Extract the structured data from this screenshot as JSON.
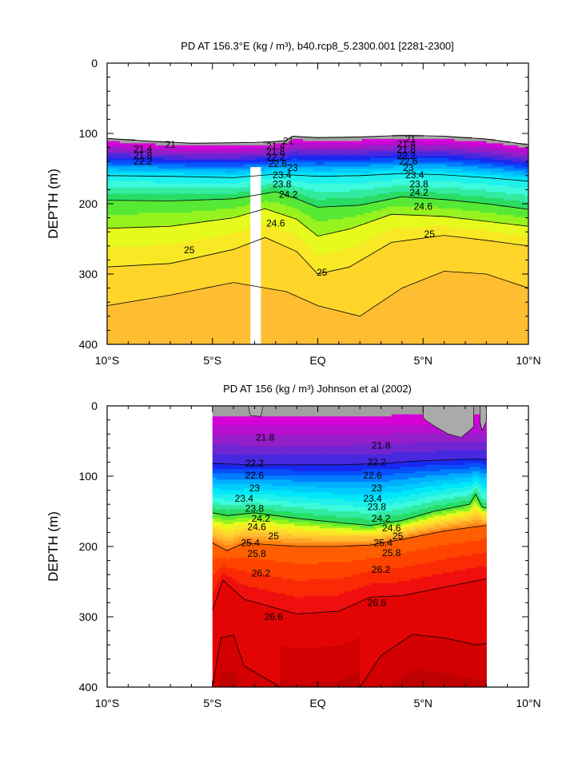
{
  "chart_data": [
    {
      "type": "contour",
      "title": "PD AT 156.3°E (kg / m³), b40.rcp8_5.2300.001 [2281-2300]",
      "ylabel": "DEPTH (m)",
      "xlabel": "",
      "x_range_lat": [
        -10,
        10
      ],
      "y_range_depth": [
        0,
        400
      ],
      "x_ticks": [
        {
          "v": -10,
          "label": "10°S"
        },
        {
          "v": -5,
          "label": "5°S"
        },
        {
          "v": 0,
          "label": "EQ"
        },
        {
          "v": 5,
          "label": "5°N"
        },
        {
          "v": 10,
          "label": "10°N"
        }
      ],
      "y_ticks": [
        {
          "v": 0,
          "label": "0"
        },
        {
          "v": 100,
          "label": "100"
        },
        {
          "v": 200,
          "label": "200"
        },
        {
          "v": 300,
          "label": "300"
        },
        {
          "v": 400,
          "label": "400"
        }
      ],
      "levels": [
        21.0,
        21.2,
        21.4,
        21.6,
        21.8,
        22.0,
        22.2,
        22.4,
        22.6,
        22.8,
        23.0,
        23.2,
        23.4,
        23.6,
        23.8,
        24.0,
        24.2,
        24.4,
        24.6,
        24.8,
        25.0,
        25.2
      ],
      "missing_band_lat": [
        -3.2,
        -2.7
      ],
      "surface_layer": [
        {
          "lat": -10,
          "d": 107
        },
        {
          "lat": -8,
          "d": 111
        },
        {
          "lat": -6,
          "d": 114
        },
        {
          "lat": -3,
          "d": 113
        },
        {
          "lat": -2.2,
          "d": 112
        },
        {
          "lat": -1.5,
          "d": 110
        },
        {
          "lat": -1.2,
          "d": 104
        },
        {
          "lat": 0,
          "d": 106
        },
        {
          "lat": 2,
          "d": 105
        },
        {
          "lat": 4,
          "d": 103
        },
        {
          "lat": 6,
          "d": 104
        },
        {
          "lat": 8,
          "d": 108
        },
        {
          "lat": 10,
          "d": 116
        }
      ],
      "isopycnals": [
        {
          "sigma": 23.4,
          "points": [
            {
              "lat": -10,
              "d": 160
            },
            {
              "lat": -7,
              "d": 161
            },
            {
              "lat": -4,
              "d": 163
            },
            {
              "lat": -2,
              "d": 158
            },
            {
              "lat": 0,
              "d": 161
            },
            {
              "lat": 2,
              "d": 160
            },
            {
              "lat": 4,
              "d": 157
            },
            {
              "lat": 6,
              "d": 159
            },
            {
              "lat": 8,
              "d": 163
            },
            {
              "lat": 10,
              "d": 168
            }
          ]
        },
        {
          "sigma": 24.2,
          "points": [
            {
              "lat": -10,
              "d": 195
            },
            {
              "lat": -7,
              "d": 196
            },
            {
              "lat": -4,
              "d": 193
            },
            {
              "lat": -2,
              "d": 183
            },
            {
              "lat": -1,
              "d": 193
            },
            {
              "lat": 0,
              "d": 205
            },
            {
              "lat": 2,
              "d": 202
            },
            {
              "lat": 4,
              "d": 190
            },
            {
              "lat": 6,
              "d": 194
            },
            {
              "lat": 8,
              "d": 200
            },
            {
              "lat": 10,
              "d": 208
            }
          ]
        },
        {
          "sigma": 24.6,
          "points": [
            {
              "lat": -10,
              "d": 235
            },
            {
              "lat": -7,
              "d": 232
            },
            {
              "lat": -4,
              "d": 220
            },
            {
              "lat": -2.5,
              "d": 207
            },
            {
              "lat": -1,
              "d": 222
            },
            {
              "lat": 0,
              "d": 246
            },
            {
              "lat": 1.5,
              "d": 236
            },
            {
              "lat": 3.5,
              "d": 215
            },
            {
              "lat": 6,
              "d": 218
            },
            {
              "lat": 8,
              "d": 225
            },
            {
              "lat": 10,
              "d": 232
            }
          ]
        },
        {
          "sigma": 25.0,
          "points": [
            {
              "lat": -10,
              "d": 290
            },
            {
              "lat": -7,
              "d": 285
            },
            {
              "lat": -4,
              "d": 265
            },
            {
              "lat": -2.5,
              "d": 248
            },
            {
              "lat": -1,
              "d": 268
            },
            {
              "lat": 0,
              "d": 300
            },
            {
              "lat": 1.5,
              "d": 290
            },
            {
              "lat": 3.5,
              "d": 255
            },
            {
              "lat": 6,
              "d": 245
            },
            {
              "lat": 8,
              "d": 252
            },
            {
              "lat": 10,
              "d": 260
            }
          ]
        },
        {
          "sigma": 25.2,
          "points": [
            {
              "lat": -10,
              "d": 345
            },
            {
              "lat": -7,
              "d": 330
            },
            {
              "lat": -4,
              "d": 312
            },
            {
              "lat": -1.5,
              "d": 325
            },
            {
              "lat": 0,
              "d": 345
            },
            {
              "lat": 2,
              "d": 360
            },
            {
              "lat": 4,
              "d": 320
            },
            {
              "lat": 6,
              "d": 296
            },
            {
              "lat": 8,
              "d": 300
            },
            {
              "lat": 10,
              "d": 320
            }
          ]
        }
      ],
      "contour_labels": [
        {
          "text": "21",
          "lat": -7.0,
          "d": 116
        },
        {
          "text": "21.4",
          "lat": -8.3,
          "d": 122
        },
        {
          "text": "21.8",
          "lat": -8.3,
          "d": 131
        },
        {
          "text": "22.2",
          "lat": -8.3,
          "d": 140
        },
        {
          "text": "21",
          "lat": -1.4,
          "d": 111
        },
        {
          "text": "21.4",
          "lat": -2.0,
          "d": 118
        },
        {
          "text": "21.8",
          "lat": -2.0,
          "d": 126
        },
        {
          "text": "22.2",
          "lat": -2.0,
          "d": 134
        },
        {
          "text": "22.6",
          "lat": -1.9,
          "d": 143
        },
        {
          "text": "23",
          "lat": -1.2,
          "d": 149
        },
        {
          "text": "23.4",
          "lat": -1.7,
          "d": 159
        },
        {
          "text": "23.8",
          "lat": -1.7,
          "d": 172
        },
        {
          "text": "24.2",
          "lat": -1.4,
          "d": 187
        },
        {
          "text": "24.6",
          "lat": -2.0,
          "d": 228
        },
        {
          "text": "25",
          "lat": -6.1,
          "d": 266
        },
        {
          "text": "25",
          "lat": 0.2,
          "d": 298
        },
        {
          "text": "21",
          "lat": 4.4,
          "d": 108
        },
        {
          "text": "21.4",
          "lat": 4.2,
          "d": 115
        },
        {
          "text": "21.8",
          "lat": 4.2,
          "d": 123
        },
        {
          "text": "22.2",
          "lat": 4.2,
          "d": 132
        },
        {
          "text": "22.6",
          "lat": 4.3,
          "d": 140
        },
        {
          "text": "23",
          "lat": 4.3,
          "d": 149
        },
        {
          "text": "23.4",
          "lat": 4.6,
          "d": 159
        },
        {
          "text": "23.8",
          "lat": 4.8,
          "d": 172
        },
        {
          "text": "24.2",
          "lat": 4.8,
          "d": 184
        },
        {
          "text": "24.6",
          "lat": 5.0,
          "d": 204
        },
        {
          "text": "25",
          "lat": 5.3,
          "d": 243
        }
      ]
    },
    {
      "type": "contour",
      "title": "PD AT 156 (kg / m³) Johnson et al (2002)",
      "ylabel": "DEPTH (m)",
      "xlabel": "",
      "x_range_lat": [
        -10,
        10
      ],
      "y_range_depth": [
        0,
        400
      ],
      "data_extent_lat": [
        -5,
        8
      ],
      "x_ticks": [
        {
          "v": -10,
          "label": "10°S"
        },
        {
          "v": -5,
          "label": "5°S"
        },
        {
          "v": 0,
          "label": "EQ"
        },
        {
          "v": 5,
          "label": "5°N"
        },
        {
          "v": 10,
          "label": "10°N"
        }
      ],
      "y_ticks": [
        {
          "v": 0,
          "label": "0"
        },
        {
          "v": 100,
          "label": "100"
        },
        {
          "v": 200,
          "label": "200"
        },
        {
          "v": 300,
          "label": "300"
        },
        {
          "v": 400,
          "label": "400"
        }
      ],
      "levels": [
        21.0,
        21.2,
        21.4,
        21.6,
        21.8,
        22.0,
        22.2,
        22.4,
        22.6,
        22.8,
        23.0,
        23.2,
        23.4,
        23.6,
        23.8,
        24.0,
        24.2,
        24.4,
        24.6,
        24.8,
        25.0,
        25.2,
        25.4,
        25.6,
        25.8,
        26.0,
        26.2,
        26.4,
        26.6,
        26.8,
        27.0
      ],
      "isopycnals": [
        {
          "sigma": 22.2,
          "points": [
            {
              "lat": -5,
              "d": 82
            },
            {
              "lat": -3,
              "d": 84
            },
            {
              "lat": -1,
              "d": 84
            },
            {
              "lat": 1,
              "d": 84
            },
            {
              "lat": 3,
              "d": 82
            },
            {
              "lat": 5,
              "d": 78
            },
            {
              "lat": 7,
              "d": 76
            },
            {
              "lat": 8,
              "d": 76
            }
          ]
        },
        {
          "sigma": 24.2,
          "points": [
            {
              "lat": -5,
              "d": 152
            },
            {
              "lat": -4.3,
              "d": 156
            },
            {
              "lat": -3,
              "d": 152
            },
            {
              "lat": -1,
              "d": 160
            },
            {
              "lat": 1,
              "d": 166
            },
            {
              "lat": 2.5,
              "d": 170
            },
            {
              "lat": 4,
              "d": 163
            },
            {
              "lat": 5.5,
              "d": 150
            },
            {
              "lat": 7.2,
              "d": 140
            },
            {
              "lat": 7.5,
              "d": 126
            },
            {
              "lat": 7.8,
              "d": 144
            },
            {
              "lat": 8,
              "d": 145
            }
          ]
        },
        {
          "sigma": 25.8,
          "points": [
            {
              "lat": -5,
              "d": 195
            },
            {
              "lat": -4.3,
              "d": 206
            },
            {
              "lat": -3.5,
              "d": 195
            },
            {
              "lat": -1,
              "d": 200
            },
            {
              "lat": 1,
              "d": 200
            },
            {
              "lat": 2.5,
              "d": 198
            },
            {
              "lat": 4,
              "d": 190
            },
            {
              "lat": 6,
              "d": 178
            },
            {
              "lat": 8,
              "d": 170
            }
          ]
        },
        {
          "sigma": 26.6,
          "points": [
            {
              "lat": -5,
              "d": 290
            },
            {
              "lat": -4.5,
              "d": 248
            },
            {
              "lat": -3.5,
              "d": 275
            },
            {
              "lat": -1,
              "d": 296
            },
            {
              "lat": 1,
              "d": 292
            },
            {
              "lat": 2.5,
              "d": 272
            },
            {
              "lat": 4,
              "d": 270
            },
            {
              "lat": 6,
              "d": 258
            },
            {
              "lat": 8,
              "d": 246
            }
          ]
        },
        {
          "sigma": 26.8,
          "points": [
            {
              "lat": -5,
              "d": 400
            },
            {
              "lat": -4.6,
              "d": 330
            },
            {
              "lat": -4,
              "d": 326
            },
            {
              "lat": -3.5,
              "d": 370
            },
            {
              "lat": -2,
              "d": 396
            },
            {
              "lat": -1.8,
              "d": 400
            }
          ]
        },
        {
          "sigma": 26.8,
          "points": [
            {
              "lat": 2,
              "d": 400
            },
            {
              "lat": 3,
              "d": 355
            },
            {
              "lat": 4.5,
              "d": 325
            },
            {
              "lat": 6,
              "d": 330
            },
            {
              "lat": 7.5,
              "d": 340
            },
            {
              "lat": 8,
              "d": 338
            }
          ]
        }
      ],
      "contour_labels": [
        {
          "text": "21.8",
          "lat": -2.5,
          "d": 45
        },
        {
          "text": "22.2",
          "lat": -3.0,
          "d": 82
        },
        {
          "text": "22.6",
          "lat": -3.0,
          "d": 99
        },
        {
          "text": "23",
          "lat": -3.0,
          "d": 117
        },
        {
          "text": "23.4",
          "lat": -3.5,
          "d": 132
        },
        {
          "text": "23.8",
          "lat": -3.0,
          "d": 146
        },
        {
          "text": "24.2",
          "lat": -2.7,
          "d": 160
        },
        {
          "text": "24.6",
          "lat": -2.9,
          "d": 172
        },
        {
          "text": "25",
          "lat": -2.1,
          "d": 185
        },
        {
          "text": "25.4",
          "lat": -3.2,
          "d": 195
        },
        {
          "text": "25.8",
          "lat": -2.9,
          "d": 210
        },
        {
          "text": "26.2",
          "lat": -2.7,
          "d": 238
        },
        {
          "text": "26.6",
          "lat": -2.1,
          "d": 300
        },
        {
          "text": "21.8",
          "lat": 3.0,
          "d": 56
        },
        {
          "text": "22.2",
          "lat": 2.8,
          "d": 80
        },
        {
          "text": "22.6",
          "lat": 2.6,
          "d": 99
        },
        {
          "text": "23",
          "lat": 2.8,
          "d": 117
        },
        {
          "text": "23.4",
          "lat": 2.6,
          "d": 132
        },
        {
          "text": "23.8",
          "lat": 2.8,
          "d": 144
        },
        {
          "text": "24.2",
          "lat": 3.0,
          "d": 160
        },
        {
          "text": "24.6",
          "lat": 3.5,
          "d": 174
        },
        {
          "text": "25",
          "lat": 3.8,
          "d": 185
        },
        {
          "text": "25.4",
          "lat": 3.1,
          "d": 195
        },
        {
          "text": "25.8",
          "lat": 3.5,
          "d": 209
        },
        {
          "text": "26.2",
          "lat": 3.0,
          "d": 233
        },
        {
          "text": "26.6",
          "lat": 2.8,
          "d": 280
        }
      ]
    }
  ]
}
